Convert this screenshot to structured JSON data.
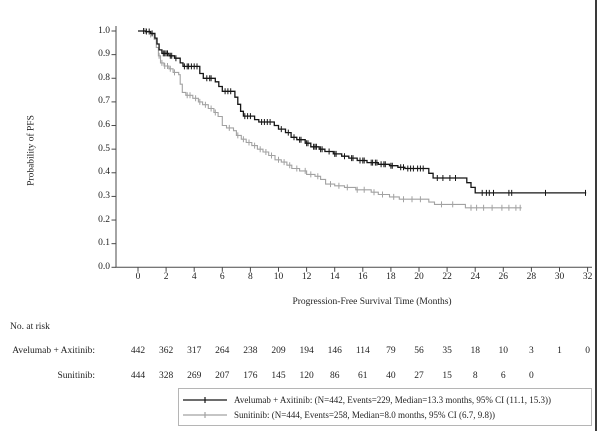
{
  "figure": {
    "no_at_risk_title": "No. at risk",
    "risk_rows": [
      {
        "label": "Avelumab + Axitinib:",
        "start_month": 0,
        "interval": 2,
        "counts": [
          442,
          362,
          317,
          264,
          238,
          209,
          194,
          146,
          114,
          79,
          56,
          35,
          18,
          10,
          3,
          1,
          0
        ]
      },
      {
        "label": "Sunitinib:",
        "start_month": 0,
        "interval": 2,
        "counts": [
          444,
          328,
          269,
          207,
          176,
          145,
          120,
          86,
          61,
          40,
          27,
          15,
          8,
          6,
          0
        ]
      }
    ],
    "legend": [
      {
        "label": "Avelumab + Axitinib:  (N=442, Events=229, Median=13.3 months, 95% CI (11.1, 15.3))",
        "color": "#161616"
      },
      {
        "label": "Sunitinib:  (N=444, Events=258, Median=8.0 months, 95% CI (6.7, 9.8))",
        "color": "#a2a2a2"
      }
    ]
  },
  "chart_data": {
    "type": "line",
    "subtype": "kaplan-meier-step",
    "title": "",
    "xlabel": "Progression-Free Survival Time (Months)",
    "ylabel": "Probability of PFS",
    "xlim": [
      0,
      32
    ],
    "ylim": [
      0.0,
      1.0
    ],
    "xticks": [
      0,
      2,
      4,
      6,
      8,
      10,
      12,
      14,
      16,
      18,
      20,
      22,
      24,
      26,
      28,
      30,
      32
    ],
    "yticks": [
      1.0,
      0.9,
      0.8,
      0.7,
      0.6,
      0.5,
      0.4,
      0.3,
      0.2,
      0.1,
      0.0
    ],
    "ytick_labels": [
      "1.0",
      "0.9",
      "0.8",
      "0.7",
      "0.6",
      "0.5",
      "0.4",
      "0.3",
      "0.2",
      "0.1",
      "0.0"
    ],
    "grid": false,
    "legend_position": "bottom-right-box",
    "series": [
      {
        "name": "Avelumab + Axitinib",
        "color": "#161616",
        "n": 442,
        "events": 229,
        "median_months": 13.3,
        "ci_95": [
          11.1,
          15.3
        ],
        "steps": [
          [
            0,
            1.0
          ],
          [
            0.55,
            0.998
          ],
          [
            0.9,
            0.99
          ],
          [
            1.2,
            0.97
          ],
          [
            1.35,
            0.945
          ],
          [
            1.5,
            0.92
          ],
          [
            1.7,
            0.905
          ],
          [
            2.2,
            0.895
          ],
          [
            2.6,
            0.885
          ],
          [
            3.0,
            0.865
          ],
          [
            3.2,
            0.85
          ],
          [
            4.4,
            0.82
          ],
          [
            4.65,
            0.8
          ],
          [
            5.5,
            0.785
          ],
          [
            5.75,
            0.765
          ],
          [
            6.0,
            0.745
          ],
          [
            6.9,
            0.72
          ],
          [
            7.1,
            0.69
          ],
          [
            7.3,
            0.66
          ],
          [
            7.5,
            0.64
          ],
          [
            8.3,
            0.625
          ],
          [
            8.6,
            0.615
          ],
          [
            9.7,
            0.6
          ],
          [
            10.0,
            0.585
          ],
          [
            10.5,
            0.57
          ],
          [
            10.9,
            0.55
          ],
          [
            11.3,
            0.54
          ],
          [
            11.9,
            0.525
          ],
          [
            12.3,
            0.51
          ],
          [
            12.9,
            0.5
          ],
          [
            13.3,
            0.49
          ],
          [
            13.9,
            0.48
          ],
          [
            14.5,
            0.47
          ],
          [
            15.0,
            0.462
          ],
          [
            15.6,
            0.452
          ],
          [
            16.3,
            0.443
          ],
          [
            17.1,
            0.436
          ],
          [
            17.9,
            0.43
          ],
          [
            18.5,
            0.423
          ],
          [
            19.0,
            0.418
          ],
          [
            20.7,
            0.398
          ],
          [
            21.0,
            0.378
          ],
          [
            23.4,
            0.358
          ],
          [
            23.7,
            0.338
          ],
          [
            24.0,
            0.315
          ],
          [
            31.9,
            0.315
          ]
        ],
        "censor_times": [
          0.4,
          0.6,
          0.8,
          1.0,
          1.8,
          1.9,
          2.0,
          2.1,
          2.3,
          2.4,
          2.7,
          3.3,
          3.5,
          3.6,
          3.8,
          4.0,
          4.2,
          4.9,
          5.1,
          5.2,
          6.2,
          6.4,
          6.6,
          7.6,
          7.8,
          8.0,
          8.8,
          9.0,
          9.2,
          9.4,
          10.2,
          10.7,
          11.1,
          11.5,
          11.6,
          12.0,
          12.1,
          12.5,
          12.6,
          12.7,
          13.0,
          13.1,
          13.6,
          14.0,
          14.1,
          14.7,
          15.2,
          15.3,
          15.8,
          16.0,
          16.1,
          16.6,
          16.7,
          16.9,
          17.0,
          17.3,
          17.5,
          17.6,
          18.0,
          18.1,
          18.7,
          18.9,
          19.2,
          19.4,
          19.6,
          19.9,
          20.1,
          20.3,
          21.3,
          21.7,
          22.2,
          22.6,
          24.5,
          24.8,
          25.0,
          25.3,
          26.4,
          26.6,
          29.0,
          31.85
        ]
      },
      {
        "name": "Sunitinib",
        "color": "#a2a2a2",
        "n": 444,
        "events": 258,
        "median_months": 8.0,
        "ci_95": [
          6.7,
          9.8
        ],
        "steps": [
          [
            0,
            1.0
          ],
          [
            0.55,
            0.995
          ],
          [
            0.9,
            0.985
          ],
          [
            1.15,
            0.965
          ],
          [
            1.3,
            0.93
          ],
          [
            1.45,
            0.895
          ],
          [
            1.6,
            0.865
          ],
          [
            1.85,
            0.852
          ],
          [
            2.2,
            0.84
          ],
          [
            2.5,
            0.825
          ],
          [
            2.9,
            0.815
          ],
          [
            3.0,
            0.775
          ],
          [
            3.15,
            0.74
          ],
          [
            3.4,
            0.728
          ],
          [
            3.9,
            0.715
          ],
          [
            4.3,
            0.7
          ],
          [
            4.6,
            0.688
          ],
          [
            5.0,
            0.672
          ],
          [
            5.4,
            0.655
          ],
          [
            5.7,
            0.638
          ],
          [
            6.0,
            0.6
          ],
          [
            6.3,
            0.59
          ],
          [
            6.8,
            0.578
          ],
          [
            7.0,
            0.558
          ],
          [
            7.35,
            0.542
          ],
          [
            7.7,
            0.528
          ],
          [
            8.1,
            0.515
          ],
          [
            8.5,
            0.5
          ],
          [
            8.9,
            0.488
          ],
          [
            9.3,
            0.473
          ],
          [
            9.75,
            0.455
          ],
          [
            10.2,
            0.445
          ],
          [
            10.6,
            0.432
          ],
          [
            10.95,
            0.418
          ],
          [
            11.5,
            0.408
          ],
          [
            12.0,
            0.393
          ],
          [
            12.6,
            0.385
          ],
          [
            13.0,
            0.372
          ],
          [
            13.35,
            0.352
          ],
          [
            14.0,
            0.345
          ],
          [
            14.7,
            0.338
          ],
          [
            15.5,
            0.328
          ],
          [
            16.6,
            0.318
          ],
          [
            17.1,
            0.308
          ],
          [
            17.9,
            0.298
          ],
          [
            18.6,
            0.288
          ],
          [
            20.7,
            0.276
          ],
          [
            21.1,
            0.266
          ],
          [
            23.3,
            0.252
          ],
          [
            27.3,
            0.252
          ]
        ],
        "censor_times": [
          0.5,
          0.9,
          1.5,
          1.7,
          1.9,
          2.1,
          2.3,
          2.6,
          3.5,
          3.7,
          4.1,
          4.4,
          4.8,
          5.2,
          5.5,
          6.5,
          7.1,
          7.5,
          7.9,
          8.3,
          8.7,
          9.1,
          9.5,
          10.0,
          10.4,
          10.8,
          11.3,
          11.9,
          12.3,
          12.8,
          13.7,
          14.3,
          14.9,
          15.6,
          16.1,
          16.8,
          17.4,
          18.2,
          18.9,
          19.5,
          20.1,
          21.6,
          22.4,
          23.7,
          24.1,
          24.6,
          25.2,
          25.9,
          26.4,
          26.9,
          27.2
        ]
      }
    ]
  }
}
